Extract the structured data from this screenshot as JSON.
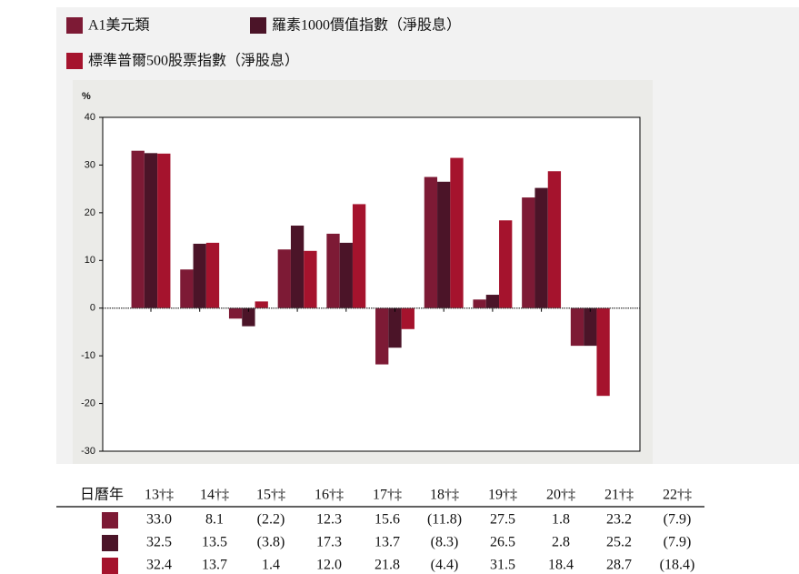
{
  "chart_data": {
    "type": "bar",
    "y_unit_label": "%",
    "categories": [
      "13†‡",
      "14†‡",
      "15†‡",
      "16†‡",
      "17†‡",
      "18†‡",
      "19†‡",
      "20†‡",
      "21†‡",
      "22†‡"
    ],
    "table_header_label": "日曆年",
    "series": [
      {
        "name": "A1美元類",
        "color": "#7d1a35",
        "values": [
          33.0,
          8.1,
          -2.2,
          12.3,
          15.6,
          -11.8,
          27.5,
          1.8,
          23.2,
          -7.9
        ],
        "value_labels": [
          "33.0",
          "8.1",
          "(2.2)",
          "12.3",
          "15.6",
          "(11.8)",
          "27.5",
          "1.8",
          "23.2",
          "(7.9)"
        ]
      },
      {
        "name": "羅素1000價值指數（淨股息）",
        "color": "#4b1428",
        "values": [
          32.5,
          13.5,
          -3.8,
          17.3,
          13.7,
          -8.3,
          26.5,
          2.8,
          25.2,
          -7.9
        ],
        "value_labels": [
          "32.5",
          "13.5",
          "(3.8)",
          "17.3",
          "13.7",
          "(8.3)",
          "26.5",
          "2.8",
          "25.2",
          "(7.9)"
        ]
      },
      {
        "name": "標準普爾500股票指數（淨股息）",
        "color": "#a5132d",
        "values": [
          32.4,
          13.7,
          1.4,
          12.0,
          21.8,
          -4.4,
          31.5,
          18.4,
          28.7,
          -18.4
        ],
        "value_labels": [
          "32.4",
          "13.7",
          "1.4",
          "12.0",
          "21.8",
          "(4.4)",
          "31.5",
          "18.4",
          "28.7",
          "(18.4)"
        ]
      }
    ],
    "ylim": [
      -30,
      40
    ],
    "yticks": [
      -30,
      -20,
      -10,
      0,
      10,
      20,
      30,
      40
    ],
    "grid": false
  }
}
